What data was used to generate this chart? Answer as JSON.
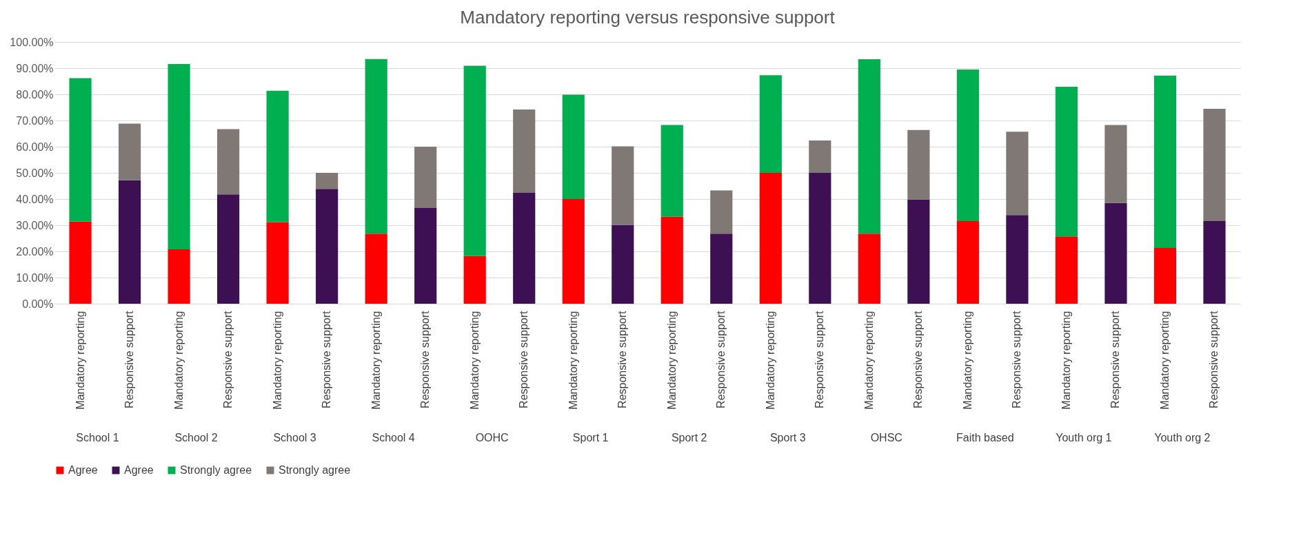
{
  "chart_data": {
    "type": "bar",
    "title": "Mandatory reporting versus responsive support",
    "stacked": true,
    "categories": [
      "Mandatory reporting",
      "Responsive support",
      "Mandatory reporting",
      "Responsive support",
      "Mandatory reporting",
      "Responsive support",
      "Mandatory reporting",
      "Responsive support",
      "Mandatory reporting",
      "Responsive support",
      "Mandatory reporting",
      "Responsive support",
      "Mandatory reporting",
      "Responsive support",
      "Mandatory reporting",
      "Responsive support",
      "Mandatory reporting",
      "Responsive support",
      "Mandatory reporting",
      "Responsive support",
      "Mandatory reporting",
      "Responsive support",
      "Mandatory reporting",
      "Responsive support"
    ],
    "annotations": [
      "School 1",
      "School 2",
      "School 3",
      "School 4",
      "OOHC",
      "Sport 1",
      "Sport 2",
      "Sport 3",
      "OHSC",
      "Faith based",
      "Youth org 1",
      "Youth org 2"
    ],
    "series": [
      {
        "name": "Agree",
        "color": "#ff0000",
        "values": [
          31.4,
          null,
          20.8,
          null,
          31.2,
          null,
          26.8,
          null,
          18.2,
          null,
          40.0,
          null,
          33.2,
          null,
          50.0,
          null,
          26.8,
          null,
          31.6,
          null,
          25.7,
          null,
          21.3,
          null
        ]
      },
      {
        "name": "Agree",
        "color": "#3c1053",
        "values": [
          null,
          47.2,
          null,
          41.8,
          null,
          43.9,
          null,
          36.6,
          null,
          42.4,
          null,
          30.1,
          null,
          26.8,
          null,
          50.0,
          null,
          39.8,
          null,
          33.9,
          null,
          38.5,
          null,
          31.6
        ]
      },
      {
        "name": "Strongly agree",
        "color": "#00b050",
        "values": [
          54.8,
          null,
          70.8,
          null,
          50.2,
          null,
          66.7,
          null,
          72.7,
          null,
          39.9,
          null,
          35.1,
          null,
          37.3,
          null,
          66.6,
          null,
          57.9,
          null,
          57.2,
          null,
          65.9,
          null
        ]
      },
      {
        "name": "Strongly agree",
        "color": "#7f7874",
        "values": [
          null,
          21.6,
          null,
          24.9,
          null,
          6.1,
          null,
          23.4,
          null,
          31.8,
          null,
          30.0,
          null,
          16.5,
          null,
          12.4,
          null,
          26.6,
          null,
          31.8,
          null,
          29.8,
          null,
          42.9
        ]
      }
    ],
    "ylim": [
      0,
      100
    ],
    "yticks": [
      {
        "value": 0,
        "label": "0.00%"
      },
      {
        "value": 10,
        "label": "10.00%"
      },
      {
        "value": 20,
        "label": "20.00%"
      },
      {
        "value": 30,
        "label": "30.00%"
      },
      {
        "value": 40,
        "label": "40.00%"
      },
      {
        "value": 50,
        "label": "50.00%"
      },
      {
        "value": 60,
        "label": "60.00%"
      },
      {
        "value": 70,
        "label": "70.00%"
      },
      {
        "value": 80,
        "label": "80.00%"
      },
      {
        "value": 90,
        "label": "90.00%"
      },
      {
        "value": 100,
        "label": "100.00%"
      }
    ],
    "grid": "y",
    "legend": "bottom"
  }
}
